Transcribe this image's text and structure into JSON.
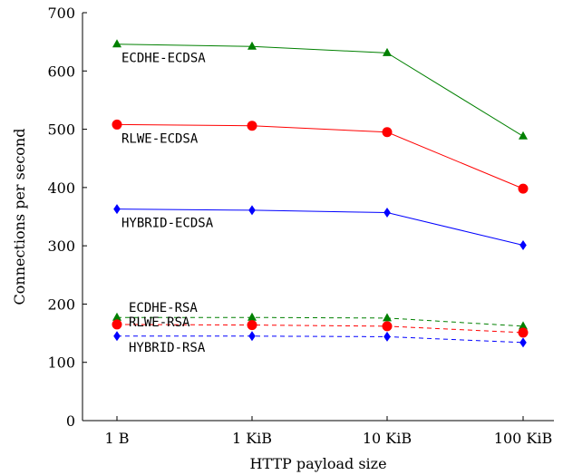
{
  "chart_data": {
    "type": "line",
    "xlabel": "HTTP payload size",
    "ylabel": "Connections per second",
    "categories": [
      "1 B",
      "1 KiB",
      "10 KiB",
      "100 KiB"
    ],
    "ylim": [
      0,
      700
    ],
    "yticks": [
      0,
      100,
      200,
      300,
      400,
      500,
      600,
      700
    ],
    "grid": false,
    "legend": "inline labels",
    "series": [
      {
        "name": "ECDHE-ECDSA",
        "values": [
          646,
          642,
          631,
          488
        ],
        "color": "#008000",
        "marker": "triangle",
        "dash": "solid"
      },
      {
        "name": "RLWE-ECDSA",
        "values": [
          508,
          506,
          495,
          398
        ],
        "color": "#ff0000",
        "marker": "circle",
        "dash": "solid"
      },
      {
        "name": "HYBRID-ECDSA",
        "values": [
          363,
          361,
          357,
          301
        ],
        "color": "#0000ff",
        "marker": "diamond",
        "dash": "solid"
      },
      {
        "name": "ECDHE-RSA",
        "values": [
          177,
          177,
          176,
          162
        ],
        "color": "#008000",
        "marker": "triangle",
        "dash": "dashed"
      },
      {
        "name": "RLWE-RSA",
        "values": [
          165,
          164,
          162,
          151
        ],
        "color": "#ff0000",
        "marker": "circle",
        "dash": "dashed"
      },
      {
        "name": "HYBRID-RSA",
        "values": [
          145,
          145,
          144,
          134
        ],
        "color": "#0000ff",
        "marker": "diamond",
        "dash": "dashed"
      }
    ]
  }
}
